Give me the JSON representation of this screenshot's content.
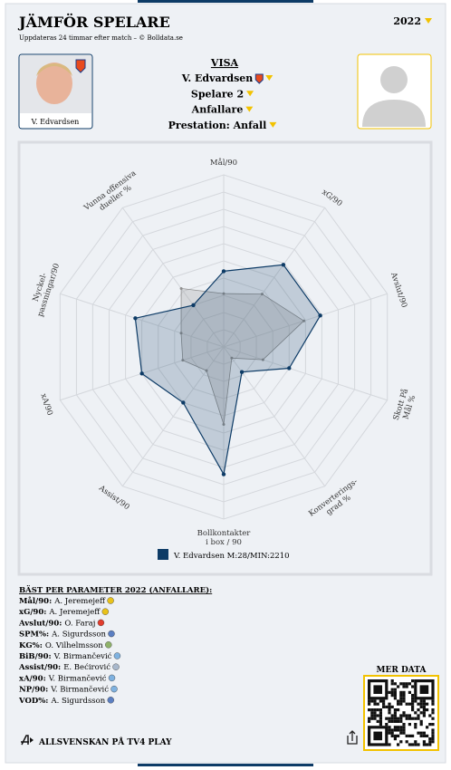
{
  "header": {
    "title": "JÄMFÖR SPELARE",
    "subtitle": "Uppdateras 24 timmar efter match – © Bolldata.se",
    "season": "2022"
  },
  "player_card": {
    "name": "V. Edvardsen"
  },
  "menu": {
    "heading": "VISA",
    "items": [
      "V. Edvardsen",
      "Spelare 2",
      "Anfallare",
      "Prestation: Anfall"
    ]
  },
  "chart_data": {
    "type": "radar",
    "axes": [
      "Mål/90",
      "xG/90",
      "Avslut/90",
      "Skott På\nMål %",
      "Konverterings-\ngrad %",
      "Bollkontakter\ni box / 90",
      "Assist/90",
      "xA/90",
      "Nyckel-\npassningar/90",
      "Vunna offensiva\ndueller %"
    ],
    "rlim": [
      0,
      100
    ],
    "rticks": [
      10,
      20,
      30,
      40,
      50,
      60,
      70,
      80,
      90,
      100
    ],
    "series": [
      {
        "name": "V. Edvardsen M:28/MIN:2210",
        "color": "#0d3b66",
        "values": [
          44,
          59,
          59,
          40,
          18,
          74,
          40,
          50,
          54,
          30
        ]
      },
      {
        "color": "#8f8f8f",
        "values": [
          31,
          38,
          49,
          24,
          8,
          45,
          17,
          25,
          26,
          42
        ]
      }
    ]
  },
  "best": {
    "title": "BÄST PER PARAMETER 2022 (ANFALLARE):",
    "rows": [
      {
        "param": "Mål/90:",
        "player": "A. Jeremejeff"
      },
      {
        "param": "xG/90:",
        "player": "A. Jeremejeff"
      },
      {
        "param": "Avslut/90:",
        "player": "O. Faraj"
      },
      {
        "param": "SPM%:",
        "player": "A. Sigurdsson"
      },
      {
        "param": "KG%:",
        "player": "O. Vilhelmsson"
      },
      {
        "param": "BiB/90:",
        "player": "V. Birmančević"
      },
      {
        "param": "Assist/90:",
        "player": "E. Bećirović"
      },
      {
        "param": "xA/90:",
        "player": "V. Birmančević"
      },
      {
        "param": "NP/90:",
        "player": "V. Birmančević"
      },
      {
        "param": "VOD%:",
        "player": "A. Sigurdsson"
      }
    ]
  },
  "more_data": "MER DATA",
  "footer": "ALLSVENSKAN PÅ TV4 PLAY"
}
